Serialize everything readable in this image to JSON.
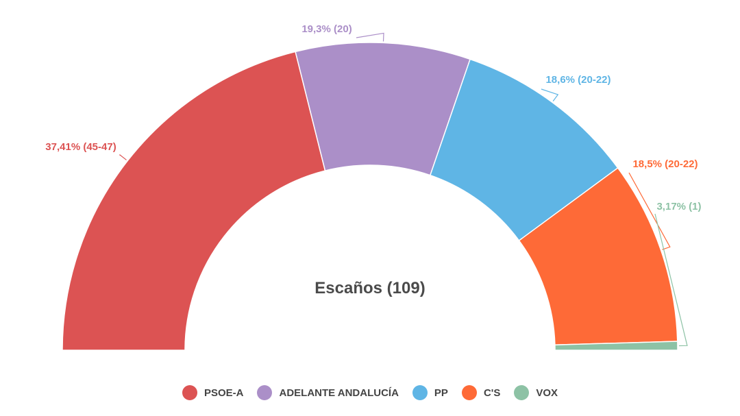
{
  "chart_data": {
    "type": "pie",
    "subtype": "semicircle-donut",
    "title": "",
    "center_label": "Escaños (109)",
    "total_seats": 109,
    "categories": [
      "PSOE-A",
      "ADELANTE ANDALUCÍA",
      "PP",
      "C'S",
      "VOX"
    ],
    "values": [
      46,
      20,
      21,
      21,
      1
    ],
    "labels": [
      "37,41% (45-47)",
      "19,3% (20)",
      "18,6% (20-22)",
      "18,5% (20-22)",
      "3,17% (1)"
    ],
    "colors": [
      "#dc5353",
      "#ab8fc8",
      "#5fb5e5",
      "#fe6a37",
      "#8dc2a5"
    ],
    "legend": {
      "position": "bottom",
      "items": [
        {
          "label": "PSOE-A",
          "color": "#dc5353"
        },
        {
          "label": "ADELANTE ANDALUCÍA",
          "color": "#ab8fc8"
        },
        {
          "label": "PP",
          "color": "#5fb5e5"
        },
        {
          "label": "C'S",
          "color": "#fe6a37"
        },
        {
          "label": "VOX",
          "color": "#8dc2a5"
        }
      ]
    }
  }
}
